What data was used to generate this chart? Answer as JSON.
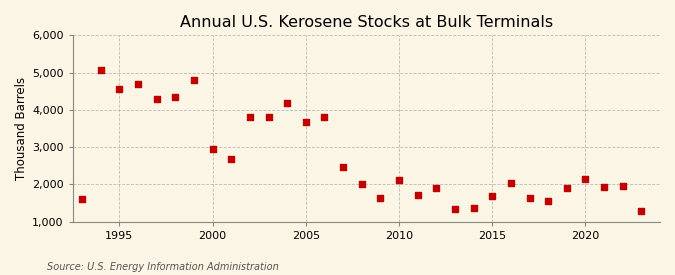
{
  "title": "Annual U.S. Kerosene Stocks at Bulk Terminals",
  "ylabel": "Thousand Barrels",
  "source": "Source: U.S. Energy Information Administration",
  "years": [
    1993,
    1994,
    1995,
    1996,
    1997,
    1998,
    1999,
    2000,
    2001,
    2002,
    2003,
    2004,
    2005,
    2006,
    2007,
    2008,
    2009,
    2010,
    2011,
    2012,
    2013,
    2014,
    2015,
    2016,
    2017,
    2018,
    2019,
    2020,
    2021,
    2022,
    2023
  ],
  "values": [
    1600,
    5080,
    4550,
    4700,
    4300,
    4350,
    4800,
    2950,
    2680,
    3800,
    3820,
    4180,
    3680,
    3820,
    2470,
    2020,
    1640,
    2130,
    1730,
    1900,
    1340,
    1360,
    1700,
    2030,
    1640,
    1560,
    1900,
    2150,
    1920,
    1960,
    1300
  ],
  "marker_color": "#c00000",
  "marker": "s",
  "marker_size": 4,
  "bg_color": "#faf5e4",
  "plot_bg_color": "#faf5e4",
  "ylim": [
    1000,
    6000
  ],
  "yticks": [
    1000,
    2000,
    3000,
    4000,
    5000,
    6000
  ],
  "ytick_labels": [
    "1,000",
    "2,000",
    "3,000",
    "4,000",
    "5,000",
    "6,000"
  ],
  "xlim": [
    1992.5,
    2024
  ],
  "xticks": [
    1995,
    2000,
    2005,
    2010,
    2015,
    2020
  ],
  "grid_color": "#bbbbbb",
  "grid_linestyle": "--",
  "title_fontsize": 11.5,
  "label_fontsize": 8.5,
  "tick_fontsize": 8,
  "source_fontsize": 7
}
